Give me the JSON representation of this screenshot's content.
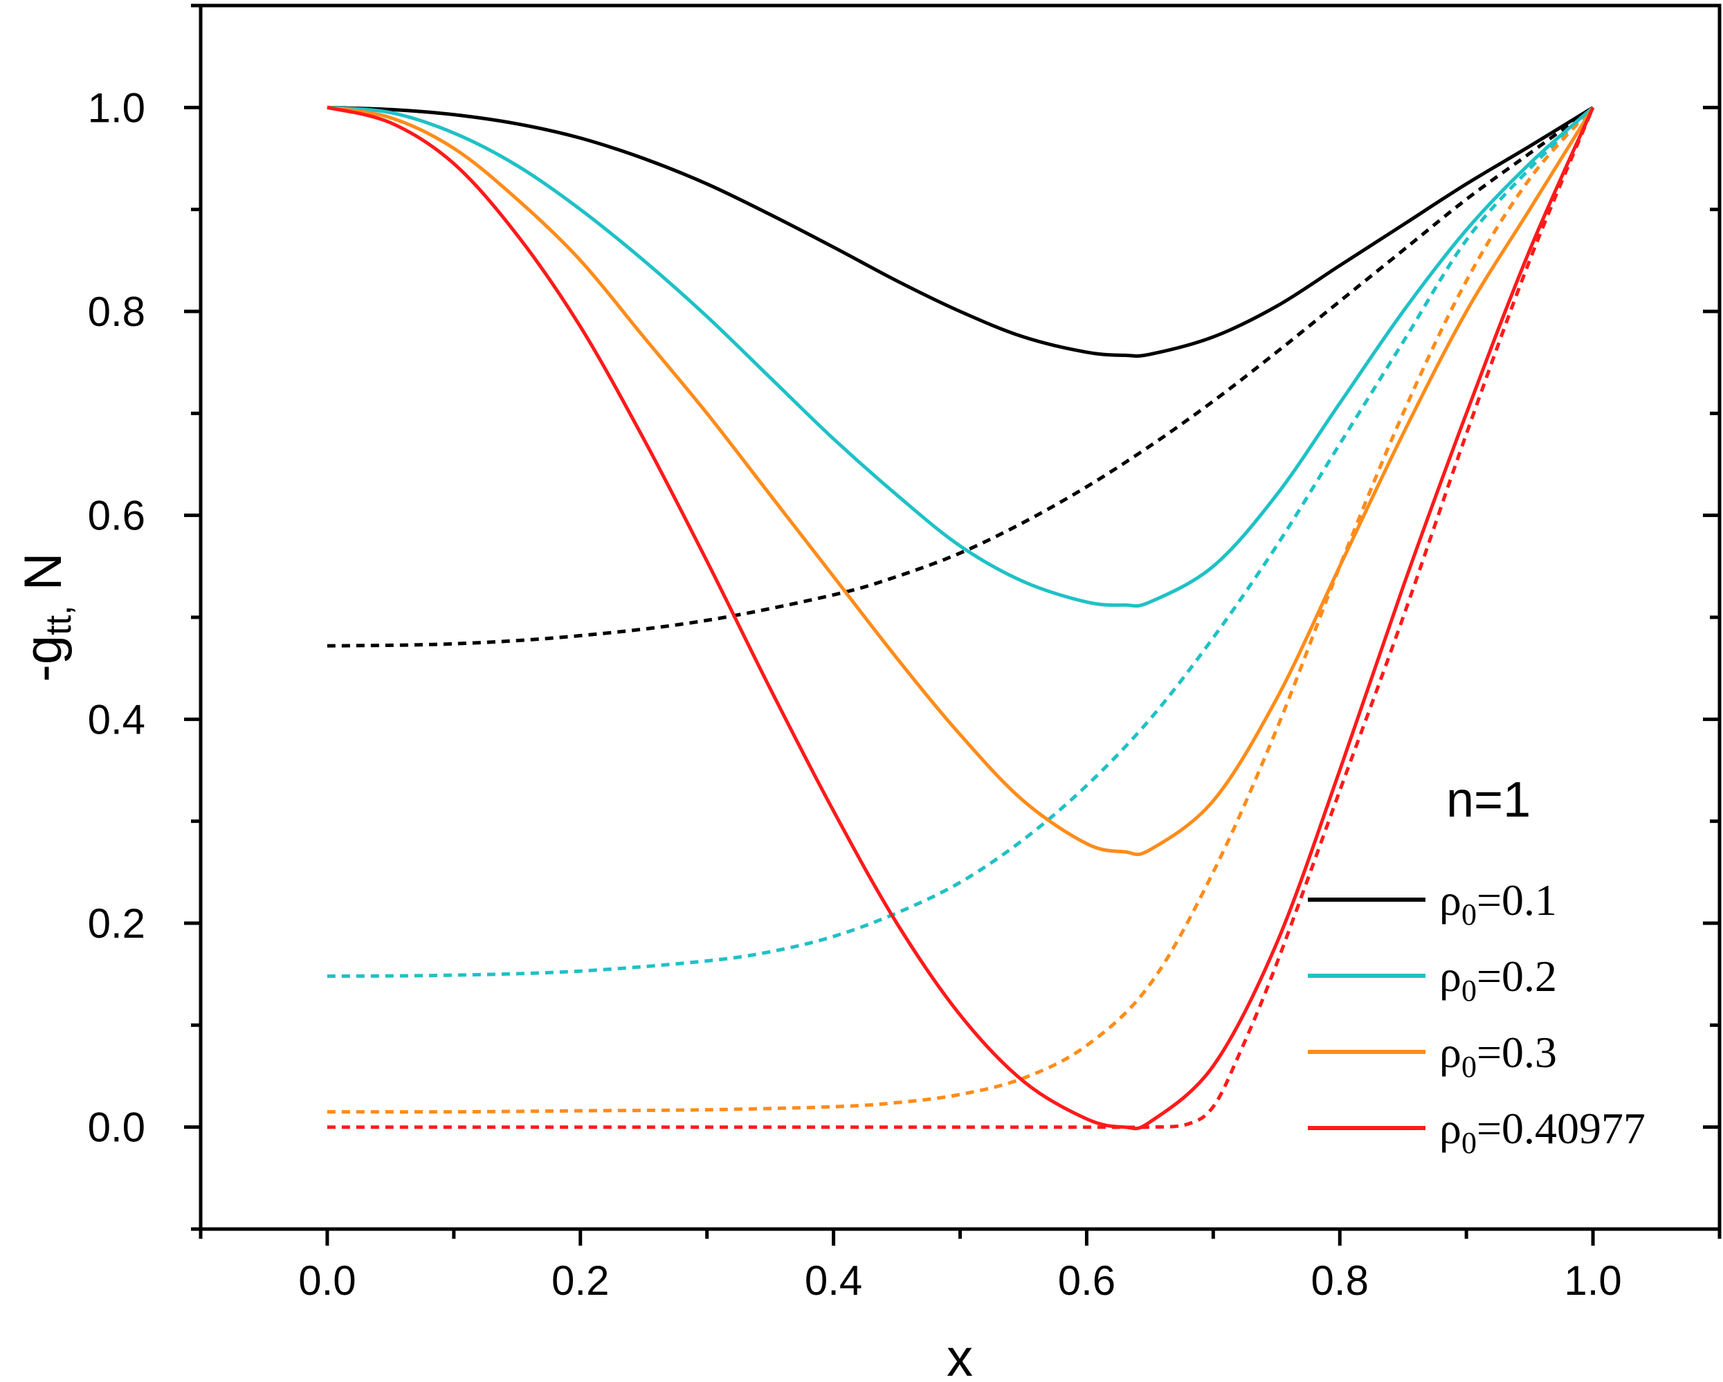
{
  "chart_data": {
    "type": "line",
    "title": "",
    "xlabel": "x",
    "ylabel_main": "-g",
    "ylabel_sub": "tt,",
    "ylabel_rest": " N",
    "xlim": [
      -0.1,
      1.1
    ],
    "ylim": [
      -0.1,
      1.1
    ],
    "xticks": [
      0.0,
      0.2,
      0.4,
      0.6,
      0.8,
      1.0
    ],
    "xtick_labels": [
      "0.0",
      "0.2",
      "0.4",
      "0.6",
      "0.8",
      "1.0"
    ],
    "yticks": [
      0.0,
      0.2,
      0.4,
      0.6,
      0.8,
      1.0
    ],
    "ytick_labels": [
      "0.0",
      "0.2",
      "0.4",
      "0.6",
      "0.8",
      "1.0"
    ],
    "grid": false,
    "annotation": "n=1",
    "legend_position": "bottom-right",
    "series": [
      {
        "name": "ρ0=0.1",
        "legend_base": "ρ",
        "legend_sub": "0",
        "legend_value": "=0.1",
        "color": "#000000",
        "solid": {
          "x": [
            0.0,
            0.05,
            0.1,
            0.15,
            0.2,
            0.25,
            0.3,
            0.35,
            0.4,
            0.45,
            0.5,
            0.55,
            0.6,
            0.63,
            0.65,
            0.7,
            0.75,
            0.8,
            0.85,
            0.9,
            0.95,
            1.0
          ],
          "y": [
            1.0,
            0.998,
            0.993,
            0.984,
            0.97,
            0.95,
            0.925,
            0.895,
            0.863,
            0.83,
            0.8,
            0.775,
            0.76,
            0.757,
            0.758,
            0.775,
            0.805,
            0.845,
            0.885,
            0.925,
            0.962,
            1.0
          ]
        },
        "dashed": {
          "x": [
            0.0,
            0.1,
            0.2,
            0.3,
            0.4,
            0.45,
            0.5,
            0.55,
            0.6,
            0.65,
            0.7,
            0.75,
            0.8,
            0.85,
            0.9,
            0.95,
            1.0
          ],
          "y": [
            0.472,
            0.474,
            0.482,
            0.497,
            0.522,
            0.54,
            0.563,
            0.593,
            0.628,
            0.668,
            0.712,
            0.76,
            0.81,
            0.86,
            0.91,
            0.955,
            1.0
          ]
        }
      },
      {
        "name": "ρ0=0.2",
        "legend_base": "ρ",
        "legend_sub": "0",
        "legend_value": "=0.2",
        "color": "#1fc1c6",
        "solid": {
          "x": [
            0.0,
            0.05,
            0.1,
            0.15,
            0.2,
            0.25,
            0.3,
            0.35,
            0.4,
            0.45,
            0.5,
            0.55,
            0.6,
            0.63,
            0.65,
            0.7,
            0.75,
            0.8,
            0.85,
            0.9,
            0.95,
            1.0
          ],
          "y": [
            1.0,
            0.995,
            0.975,
            0.943,
            0.9,
            0.85,
            0.795,
            0.735,
            0.675,
            0.62,
            0.57,
            0.535,
            0.515,
            0.512,
            0.515,
            0.55,
            0.62,
            0.71,
            0.8,
            0.88,
            0.945,
            1.0
          ]
        },
        "dashed": {
          "x": [
            0.0,
            0.1,
            0.2,
            0.3,
            0.35,
            0.4,
            0.45,
            0.5,
            0.55,
            0.6,
            0.65,
            0.7,
            0.75,
            0.8,
            0.85,
            0.9,
            0.95,
            1.0
          ],
          "y": [
            0.148,
            0.149,
            0.153,
            0.163,
            0.172,
            0.187,
            0.21,
            0.24,
            0.282,
            0.335,
            0.4,
            0.48,
            0.57,
            0.67,
            0.77,
            0.87,
            0.94,
            1.0
          ]
        }
      },
      {
        "name": "ρ0=0.3",
        "legend_base": "ρ",
        "legend_sub": "0",
        "legend_value": "=0.3",
        "color": "#ff8c1a",
        "solid": {
          "x": [
            0.0,
            0.05,
            0.1,
            0.15,
            0.2,
            0.25,
            0.3,
            0.35,
            0.4,
            0.45,
            0.5,
            0.55,
            0.6,
            0.63,
            0.65,
            0.7,
            0.75,
            0.8,
            0.85,
            0.9,
            0.95,
            1.0
          ],
          "y": [
            1.0,
            0.99,
            0.96,
            0.91,
            0.85,
            0.775,
            0.7,
            0.62,
            0.54,
            0.46,
            0.385,
            0.32,
            0.278,
            0.27,
            0.272,
            0.32,
            0.42,
            0.55,
            0.68,
            0.8,
            0.9,
            1.0
          ]
        },
        "dashed": {
          "x": [
            0.0,
            0.1,
            0.2,
            0.3,
            0.4,
            0.45,
            0.5,
            0.55,
            0.6,
            0.65,
            0.7,
            0.75,
            0.8,
            0.85,
            0.9,
            0.95,
            1.0
          ],
          "y": [
            0.015,
            0.015,
            0.016,
            0.017,
            0.02,
            0.024,
            0.032,
            0.048,
            0.08,
            0.14,
            0.25,
            0.39,
            0.55,
            0.7,
            0.83,
            0.93,
            1.0
          ]
        }
      },
      {
        "name": "ρ0=0.40977",
        "legend_base": "ρ",
        "legend_sub": "0",
        "legend_value": "=0.40977",
        "color": "#ff1a1a",
        "solid": {
          "x": [
            0.0,
            0.05,
            0.1,
            0.15,
            0.2,
            0.25,
            0.3,
            0.35,
            0.4,
            0.45,
            0.5,
            0.55,
            0.6,
            0.63,
            0.65,
            0.7,
            0.75,
            0.8,
            0.85,
            0.9,
            0.95,
            1.0
          ],
          "y": [
            1.0,
            0.985,
            0.945,
            0.875,
            0.785,
            0.675,
            0.555,
            0.43,
            0.31,
            0.2,
            0.11,
            0.045,
            0.008,
            0.0,
            0.005,
            0.06,
            0.18,
            0.35,
            0.53,
            0.7,
            0.86,
            1.0
          ]
        },
        "dashed": {
          "x": [
            0.0,
            0.2,
            0.4,
            0.5,
            0.6,
            0.65,
            0.68,
            0.7,
            0.72,
            0.75,
            0.8,
            0.85,
            0.9,
            0.95,
            1.0
          ],
          "y": [
            0.0,
            0.0,
            0.0,
            0.0,
            0.0,
            0.0,
            0.003,
            0.02,
            0.07,
            0.16,
            0.33,
            0.5,
            0.68,
            0.85,
            1.0
          ]
        }
      }
    ]
  }
}
